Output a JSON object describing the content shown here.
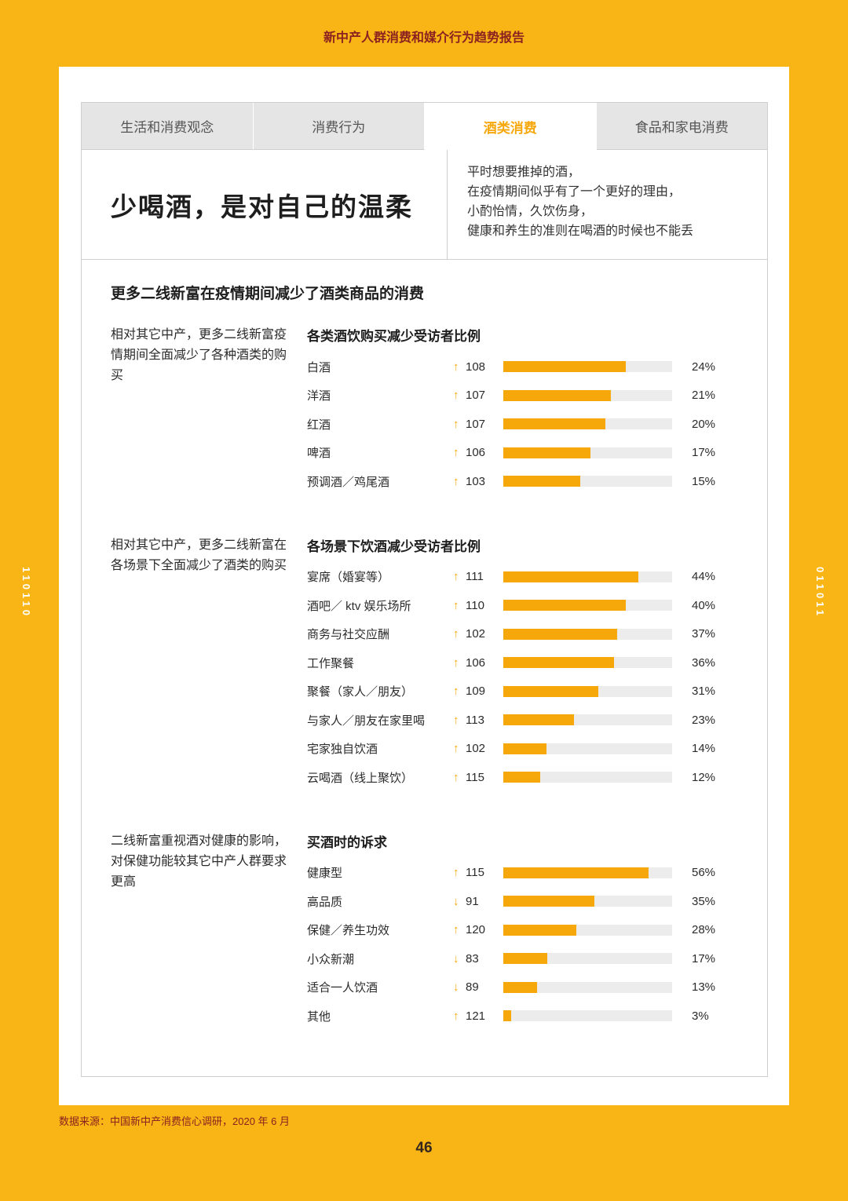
{
  "page": {
    "header_title": "新中产人群消费和媒介行为趋势报告",
    "footer_source": "数据来源：中国新中产消费信心调研，2020 年 6 月",
    "page_number": "46",
    "side_code_left": "110110",
    "side_code_right": "011011"
  },
  "tabs": [
    {
      "label": "生活和消费观念",
      "active": false
    },
    {
      "label": "消费行为",
      "active": false
    },
    {
      "label": "酒类消费",
      "active": true
    },
    {
      "label": "食品和家电消费",
      "active": false
    }
  ],
  "hero": {
    "title": "少喝酒，是对自己的温柔",
    "subtitle_lines": [
      "平时想要推掉的酒，",
      "在疫情期间似乎有了一个更好的理由，",
      "小酌怡情，久饮伤身，",
      "健康和养生的准则在喝酒的时候也不能丢"
    ]
  },
  "main": {
    "heading": "更多二线新富在疫情期间减少了酒类商品的消费"
  },
  "colors": {
    "frame_yellow": "#F8B515",
    "accent_amber": "#F6A70A",
    "bar_track_gray": "#ECECEC",
    "tab_gray": "#E5E5E5",
    "dark_red": "#8B2121"
  },
  "chart_data": [
    {
      "type": "bar",
      "title": "各类酒饮购买减少受访者比例",
      "description": "相对其它中产，更多二线新富疫情期间全面减少了各种酒类的购买",
      "unit": "%",
      "axis_max": 33,
      "rows": [
        {
          "label": "白酒",
          "trend": "up",
          "index": 108,
          "value": 24
        },
        {
          "label": "洋酒",
          "trend": "up",
          "index": 107,
          "value": 21
        },
        {
          "label": "红酒",
          "trend": "up",
          "index": 107,
          "value": 20
        },
        {
          "label": "啤酒",
          "trend": "up",
          "index": 106,
          "value": 17
        },
        {
          "label": "预调酒／鸡尾酒",
          "trend": "up",
          "index": 103,
          "value": 15
        }
      ]
    },
    {
      "type": "bar",
      "title": "各场景下饮酒减少受访者比例",
      "description": "相对其它中产，更多二线新富在各场景下全面减少了酒类的购买",
      "unit": "%",
      "axis_max": 55,
      "rows": [
        {
          "label": "宴席（婚宴等）",
          "trend": "up",
          "index": 111,
          "value": 44
        },
        {
          "label": "酒吧／ ktv 娱乐场所",
          "trend": "up",
          "index": 110,
          "value": 40
        },
        {
          "label": "商务与社交应酬",
          "trend": "up",
          "index": 102,
          "value": 37
        },
        {
          "label": "工作聚餐",
          "trend": "up",
          "index": 106,
          "value": 36
        },
        {
          "label": "聚餐（家人／朋友）",
          "trend": "up",
          "index": 109,
          "value": 31
        },
        {
          "label": "与家人／朋友在家里喝",
          "trend": "up",
          "index": 113,
          "value": 23
        },
        {
          "label": "宅家独自饮酒",
          "trend": "up",
          "index": 102,
          "value": 14
        },
        {
          "label": "云喝酒（线上聚饮）",
          "trend": "up",
          "index": 115,
          "value": 12
        }
      ]
    },
    {
      "type": "bar",
      "title": "买酒时的诉求",
      "description": "二线新富重视酒对健康的影响，对保健功能较其它中产人群要求更高",
      "unit": "%",
      "axis_max": 65,
      "rows": [
        {
          "label": "健康型",
          "trend": "up",
          "index": 115,
          "value": 56
        },
        {
          "label": "高品质",
          "trend": "down",
          "index": 91,
          "value": 35
        },
        {
          "label": "保健／养生功效",
          "trend": "up",
          "index": 120,
          "value": 28
        },
        {
          "label": "小众新潮",
          "trend": "down",
          "index": 83,
          "value": 17
        },
        {
          "label": "适合一人饮酒",
          "trend": "down",
          "index": 89,
          "value": 13
        },
        {
          "label": "其他",
          "trend": "up",
          "index": 121,
          "value": 3
        }
      ]
    }
  ]
}
